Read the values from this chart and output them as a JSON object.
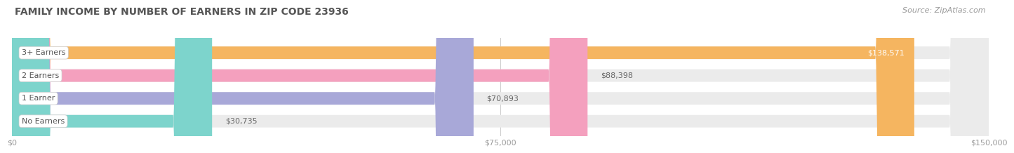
{
  "title": "FAMILY INCOME BY NUMBER OF EARNERS IN ZIP CODE 23936",
  "source": "Source: ZipAtlas.com",
  "categories": [
    "No Earners",
    "1 Earner",
    "2 Earners",
    "3+ Earners"
  ],
  "values": [
    30735,
    70893,
    88398,
    138571
  ],
  "value_labels": [
    "$30,735",
    "$70,893",
    "$88,398",
    "$138,571"
  ],
  "bar_colors": [
    "#7dd4cc",
    "#a8a8d8",
    "#f4a0be",
    "#f5b560"
  ],
  "bar_bg_color": "#ebebeb",
  "bg_color": "#ffffff",
  "xmax": 150000,
  "xticks": [
    0,
    75000,
    150000
  ],
  "xticklabels": [
    "$0",
    "$75,000",
    "$150,000"
  ],
  "title_color": "#555555",
  "source_color": "#999999",
  "label_color": "#555555",
  "value_label_color_default": "#666666",
  "value_label_color_last": "#ffffff",
  "title_fontsize": 10,
  "source_fontsize": 8,
  "label_fontsize": 8,
  "value_fontsize": 8
}
